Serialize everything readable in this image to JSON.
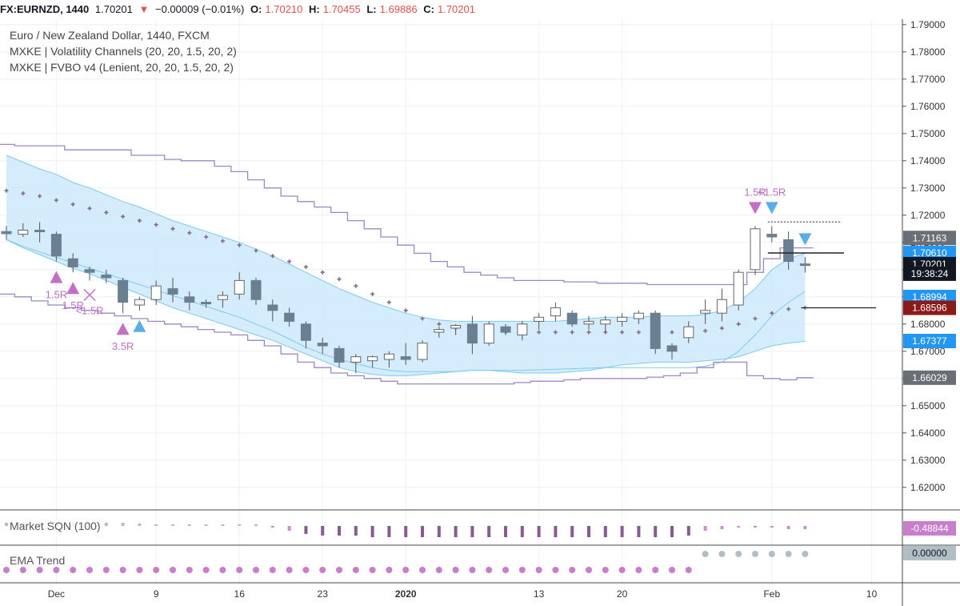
{
  "topbar": {
    "symbol": "FX:EURNZD, 1440",
    "last": "1.70201",
    "change": "−0.00009 (−0.01%)",
    "o_label": "O:",
    "o": "1.70210",
    "h_label": "H:",
    "h": "1.70455",
    "l_label": "L:",
    "l": "1.69886",
    "c_label": "C:",
    "c": "1.70201"
  },
  "legend": {
    "line1": "Euro / New Zealand Dollar, 1440, FXCM",
    "line2": "MXKE | Volatility Channels (20, 20, 1.5, 20, 2)",
    "line3": "MXKE | FVBO v4 (Lenient, 20, 20, 1.5, 20, 2)"
  },
  "panes": {
    "sqn_title": "Market SQN (100)",
    "sqn_value": "-0.48844",
    "ema_title": "EMA Trend",
    "ema_value": "0.00000"
  },
  "colors": {
    "bull": "#ffffff",
    "bear": "#6a7f91",
    "wick": "#555555",
    "band_fill": "#cce9fb",
    "band_line": "#7ccbee",
    "channel": "#9b87c4",
    "cross": "#806a8e",
    "signal_purple": "#c26fc5",
    "signal_blue": "#5aaee8",
    "ema_purple": "#c77ecb",
    "ema_grey": "#b0bec5"
  },
  "chart_data": {
    "type": "candlestick",
    "price_axis": {
      "ticks": [
        "1.79000",
        "1.78000",
        "1.77000",
        "1.76000",
        "1.75000",
        "1.74000",
        "1.73000",
        "1.72000",
        "1.71000",
        "1.70000",
        "1.69000",
        "1.68000",
        "1.67000",
        "1.66000",
        "1.65000",
        "1.64000",
        "1.63000",
        "1.62000"
      ],
      "range": [
        1.612,
        1.792
      ]
    },
    "time_axis": {
      "ticks": [
        {
          "label": "Dec",
          "bar": 3,
          "bold": false
        },
        {
          "label": "9",
          "bar": 9,
          "bold": false
        },
        {
          "label": "16",
          "bar": 14,
          "bold": false
        },
        {
          "label": "23",
          "bar": 19,
          "bold": false
        },
        {
          "label": "2020",
          "bar": 24,
          "bold": true
        },
        {
          "label": "13",
          "bar": 32,
          "bold": false
        },
        {
          "label": "20",
          "bar": 37,
          "bold": false
        },
        {
          "label": "Feb",
          "bar": 46,
          "bold": false
        },
        {
          "label": "10",
          "bar": 52,
          "bold": false
        }
      ]
    },
    "candles": [
      [
        1.714,
        1.716,
        1.711,
        1.7132
      ],
      [
        1.713,
        1.717,
        1.712,
        1.7145
      ],
      [
        1.7145,
        1.7175,
        1.71,
        1.714
      ],
      [
        1.713,
        1.714,
        1.703,
        1.705
      ],
      [
        1.704,
        1.706,
        1.699,
        1.701
      ],
      [
        1.7,
        1.701,
        1.696,
        1.699
      ],
      [
        1.698,
        1.7,
        1.695,
        1.697
      ],
      [
        1.696,
        1.697,
        1.684,
        1.688
      ],
      [
        1.687,
        1.69,
        1.685,
        1.689
      ],
      [
        1.689,
        1.696,
        1.687,
        1.694
      ],
      [
        1.693,
        1.697,
        1.688,
        1.691
      ],
      [
        1.69,
        1.692,
        1.685,
        1.688
      ],
      [
        1.688,
        1.689,
        1.686,
        1.6875
      ],
      [
        1.689,
        1.692,
        1.686,
        1.6905
      ],
      [
        1.691,
        1.699,
        1.689,
        1.696
      ],
      [
        1.696,
        1.697,
        1.687,
        1.689
      ],
      [
        1.687,
        1.689,
        1.681,
        1.685
      ],
      [
        1.684,
        1.686,
        1.679,
        1.681
      ],
      [
        1.68,
        1.681,
        1.671,
        1.674
      ],
      [
        1.673,
        1.675,
        1.669,
        1.672
      ],
      [
        1.671,
        1.672,
        1.664,
        1.666
      ],
      [
        1.666,
        1.669,
        1.662,
        1.668
      ],
      [
        1.6665,
        1.6685,
        1.664,
        1.668
      ],
      [
        1.667,
        1.67,
        1.664,
        1.669
      ],
      [
        1.668,
        1.673,
        1.665,
        1.667
      ],
      [
        1.667,
        1.674,
        1.666,
        1.673
      ],
      [
        1.677,
        1.679,
        1.675,
        1.678
      ],
      [
        1.6785,
        1.68,
        1.676,
        1.6795
      ],
      [
        1.68,
        1.683,
        1.669,
        1.673
      ],
      [
        1.673,
        1.681,
        1.672,
        1.68
      ],
      [
        1.679,
        1.68,
        1.676,
        1.677
      ],
      [
        1.676,
        1.681,
        1.674,
        1.68
      ],
      [
        1.681,
        1.684,
        1.678,
        1.6825
      ],
      [
        1.683,
        1.688,
        1.681,
        1.686
      ],
      [
        1.684,
        1.685,
        1.679,
        1.68
      ],
      [
        1.68,
        1.683,
        1.678,
        1.681
      ],
      [
        1.68,
        1.683,
        1.677,
        1.6815
      ],
      [
        1.681,
        1.684,
        1.679,
        1.6825
      ],
      [
        1.682,
        1.685,
        1.68,
        1.684
      ],
      [
        1.684,
        1.685,
        1.669,
        1.671
      ],
      [
        1.672,
        1.673,
        1.667,
        1.67
      ],
      [
        1.675,
        1.681,
        1.673,
        1.679
      ],
      [
        1.684,
        1.689,
        1.68,
        1.685
      ],
      [
        1.684,
        1.693,
        1.681,
        1.689
      ],
      [
        1.687,
        1.7,
        1.685,
        1.699
      ],
      [
        1.7,
        1.716,
        1.698,
        1.715
      ],
      [
        1.713,
        1.716,
        1.71,
        1.712
      ],
      [
        1.711,
        1.714,
        1.7,
        1.703
      ],
      [
        1.7021,
        1.70455,
        1.69886,
        1.70201
      ]
    ],
    "volatility_band": {
      "upper": [
        1.742,
        1.7395,
        1.737,
        1.735,
        1.732,
        1.73,
        1.7275,
        1.725,
        1.723,
        1.7205,
        1.718,
        1.716,
        1.714,
        1.712,
        1.71,
        1.7075,
        1.705,
        1.702,
        1.699,
        1.696,
        1.693,
        1.6905,
        1.688,
        1.686,
        1.684,
        1.6825,
        1.6815,
        1.681,
        1.681,
        1.681,
        1.681,
        1.681,
        1.681,
        1.681,
        1.6815,
        1.682,
        1.6825,
        1.6825,
        1.6825,
        1.683,
        1.683,
        1.683,
        1.6835,
        1.685,
        1.688,
        1.693,
        1.7,
        1.704,
        1.706
      ],
      "mid": [
        1.711,
        1.7085,
        1.7065,
        1.7045,
        1.7025,
        1.7005,
        1.6985,
        1.6965,
        1.6945,
        1.6925,
        1.6905,
        1.6885,
        1.6865,
        1.6845,
        1.6825,
        1.68,
        1.6775,
        1.6745,
        1.6715,
        1.669,
        1.667,
        1.6655,
        1.664,
        1.663,
        1.6625,
        1.6625,
        1.6625,
        1.6625,
        1.663,
        1.663,
        1.663,
        1.663,
        1.6632,
        1.6634,
        1.6636,
        1.6638,
        1.664,
        1.664,
        1.664,
        1.664,
        1.664,
        1.664,
        1.6645,
        1.666,
        1.67,
        1.676,
        1.683,
        1.688,
        1.692
      ],
      "lower": [
        1.711,
        1.708,
        1.7055,
        1.703,
        1.7005,
        1.6985,
        1.696,
        1.6935,
        1.691,
        1.6885,
        1.686,
        1.684,
        1.682,
        1.68,
        1.678,
        1.676,
        1.674,
        1.6715,
        1.669,
        1.6665,
        1.664,
        1.6625,
        1.6615,
        1.661,
        1.661,
        1.6615,
        1.662,
        1.6625,
        1.663,
        1.663,
        1.6625,
        1.662,
        1.662,
        1.662,
        1.6625,
        1.663,
        1.664,
        1.665,
        1.6655,
        1.666,
        1.666,
        1.666,
        1.6665,
        1.667,
        1.668,
        1.67,
        1.672,
        1.673,
        1.6737
      ]
    },
    "channel_upper": [
      1.746,
      1.7455,
      1.7455,
      1.7455,
      1.744,
      1.744,
      1.744,
      1.744,
      1.742,
      1.742,
      1.7405,
      1.74,
      1.74,
      1.738,
      1.736,
      1.733,
      1.73,
      1.727,
      1.725,
      1.723,
      1.721,
      1.718,
      1.715,
      1.712,
      1.709,
      1.706,
      1.703,
      1.701,
      1.699,
      1.698,
      1.697,
      1.696,
      1.696,
      1.696,
      1.6955,
      1.6955,
      1.695,
      1.695,
      1.695,
      1.6945,
      1.6945,
      1.6945,
      1.6945,
      1.6945,
      1.6945,
      1.699,
      1.704,
      1.708,
      1.708
    ],
    "channel_lower": [
      1.691,
      1.69,
      1.6885,
      1.687,
      1.686,
      1.685,
      1.684,
      1.683,
      1.682,
      1.681,
      1.68,
      1.679,
      1.678,
      1.677,
      1.676,
      1.674,
      1.672,
      1.669,
      1.666,
      1.664,
      1.662,
      1.661,
      1.66,
      1.659,
      1.658,
      1.658,
      1.658,
      1.658,
      1.658,
      1.658,
      1.658,
      1.6585,
      1.659,
      1.659,
      1.6595,
      1.66,
      1.66,
      1.66,
      1.66,
      1.6605,
      1.661,
      1.662,
      1.664,
      1.666,
      1.666,
      1.661,
      1.66,
      1.6595,
      1.6603
    ],
    "cross_markers": [
      1.729,
      1.728,
      1.727,
      1.7255,
      1.724,
      1.7225,
      1.721,
      1.7195,
      1.718,
      1.7165,
      1.715,
      1.7135,
      1.712,
      1.7105,
      1.709,
      1.707,
      1.705,
      1.703,
      1.701,
      1.699,
      1.6965,
      1.694,
      1.691,
      1.688,
      1.685,
      1.682,
      1.68,
      1.6785,
      1.6775,
      1.677,
      1.677,
      1.677,
      1.677,
      1.677,
      1.677,
      1.677,
      1.677,
      1.677,
      1.677,
      1.677,
      1.677,
      1.677,
      1.6775,
      1.6785,
      1.68,
      1.682,
      1.684,
      1.6855,
      1.686
    ],
    "signals": [
      {
        "bar": 3,
        "type": "triangle-up",
        "color": "purple",
        "label": "1.5R"
      },
      {
        "bar": 4,
        "type": "triangle-up",
        "color": "purple",
        "label": "1.5R"
      },
      {
        "bar": 5,
        "type": "x",
        "color": "purple",
        "label": "<1.5R"
      },
      {
        "bar": 7,
        "type": "triangle-up",
        "color": "purple",
        "label": "3.5R"
      },
      {
        "bar": 8,
        "type": "triangle-up",
        "color": "blue",
        "label": ""
      },
      {
        "bar": 45,
        "type": "triangle-down",
        "color": "purple",
        "label": "1.5R"
      },
      {
        "bar": 46,
        "type": "triangle-down",
        "color": "blue",
        "label": "<1.5R"
      },
      {
        "bar": 48,
        "type": "triangle-down",
        "color": "blue",
        "label": ""
      }
    ],
    "price_labels": [
      {
        "value": "1.71163",
        "bg": "#6a6f75",
        "price": 1.71163
      },
      {
        "value": "1.70610",
        "bg": "#2196f3",
        "price": 1.7061
      },
      {
        "value": "1.70201",
        "bg": "#131722",
        "price": 1.70201
      },
      {
        "value": "19:38:24",
        "bg": "#131722",
        "price": 1.6985
      },
      {
        "value": "1.68994",
        "bg": "#2196f3",
        "price": 1.68994
      },
      {
        "value": "1.68596",
        "bg": "#8b1a1a",
        "price": 1.68596
      },
      {
        "value": "1.67377",
        "bg": "#2196f3",
        "price": 1.67377
      },
      {
        "value": "1.66029",
        "bg": "#6a6f75",
        "price": 1.66029
      }
    ],
    "sqn": [
      0.2,
      0.2,
      0.2,
      0.2,
      0.2,
      0.2,
      0.2,
      0.2,
      0.15,
      0.1,
      0.1,
      0.1,
      0.1,
      0.05,
      0.05,
      0.05,
      -0.1,
      -0.3,
      -0.5,
      -0.6,
      -0.6,
      -0.6,
      -0.7,
      -0.7,
      -0.7,
      -0.7,
      -0.7,
      -0.7,
      -0.7,
      -0.7,
      -0.7,
      -0.7,
      -0.7,
      -0.7,
      -0.7,
      -0.7,
      -0.7,
      -0.7,
      -0.7,
      -0.7,
      -0.7,
      -0.6,
      -0.3,
      -0.2,
      -0.1,
      -0.1,
      -0.1,
      -0.2,
      -0.2
    ],
    "ema_trend": [
      "p",
      "p",
      "p",
      "p",
      "p",
      "p",
      "p",
      "p",
      "p",
      "p",
      "p",
      "p",
      "p",
      "p",
      "p",
      "p",
      "p",
      "p",
      "p",
      "p",
      "p",
      "p",
      "p",
      "p",
      "p",
      "p",
      "p",
      "p",
      "p",
      "p",
      "p",
      "p",
      "p",
      "p",
      "p",
      "p",
      "p",
      "p",
      "p",
      "p",
      "p",
      "p",
      "g",
      "g",
      "g",
      "g",
      "g",
      "g",
      "g"
    ]
  }
}
